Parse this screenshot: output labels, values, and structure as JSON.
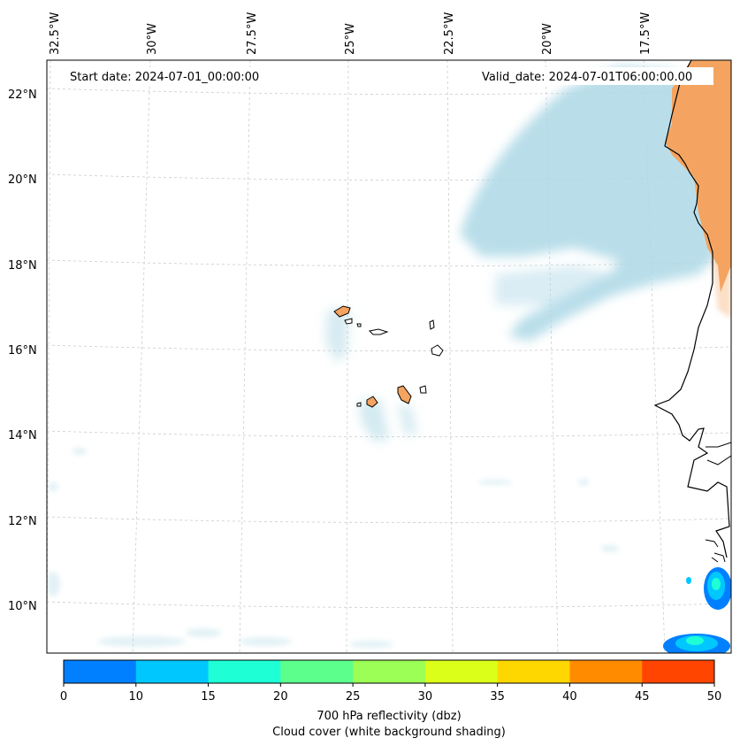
{
  "map": {
    "start_date": "Start date: 2024-07-01_00:00:00",
    "valid_date": "Valid_date: 2024-07-01T06:00:00.00",
    "lon_labels": [
      "32.5°W",
      "30°W",
      "27.5°W",
      "25°W",
      "22.5°W",
      "20°W",
      "17.5°W"
    ],
    "lat_labels": [
      "22°N",
      "20°N",
      "18°N",
      "16°N",
      "14°N",
      "12°N",
      "10°N"
    ],
    "colors": {
      "ocean": "#ffffff",
      "land_dry": "#f4a460",
      "cloud": "#add8e6",
      "coastline": "#000000",
      "grid": "#cccccc"
    }
  },
  "colorbar": {
    "ticks": [
      "0",
      "10",
      "15",
      "20",
      "25",
      "30",
      "35",
      "40",
      "45",
      "50"
    ],
    "colors": [
      "#0080ff",
      "#00c8ff",
      "#1effd6",
      "#5cff8c",
      "#9bff55",
      "#dcff1a",
      "#ffd700",
      "#ff8c00",
      "#ff4500"
    ],
    "label_line1": "700 hPa reflectivity (dbz)",
    "label_line2": "Cloud cover (white background shading)"
  }
}
